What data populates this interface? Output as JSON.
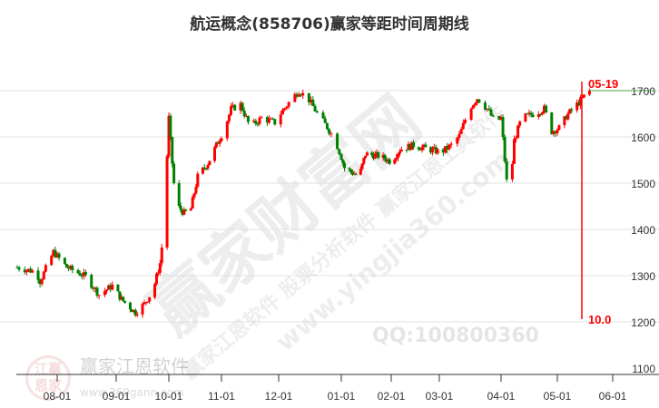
{
  "title": "航运概念(858706)赢家等距时间周期线",
  "watermarks": {
    "main": "赢家财富网",
    "sub": "赢家江恩软件 股票分析软件 赢家江恩工具软件",
    "url": "www.yingjia360.com",
    "qq": "QQ:100800360",
    "logo_text": "赢家江恩软件",
    "logo_url": "www.360gann.com",
    "seal": "江赢恩家"
  },
  "colors": {
    "up": "#ff0000",
    "down": "#008000",
    "marker": "#ff0000",
    "grid": "#e0e0e0"
  },
  "chart_data": {
    "type": "candlestick",
    "title": "航运概念(858706)赢家等距时间周期线",
    "ylim": [
      1100,
      1700
    ],
    "y_ticks": [
      1700,
      1600,
      1500,
      1400,
      1300,
      1200,
      1100
    ],
    "x_ticks": [
      "08-01",
      "09-01",
      "10-01",
      "11-01",
      "12-01",
      "01-01",
      "02-01",
      "03-01",
      "04-01",
      "05-01",
      "06-01"
    ],
    "grid": "horizontal",
    "approx_closes": [
      [
        "07-11",
        1318
      ],
      [
        "07-21",
        1308
      ],
      [
        "07-23",
        1288
      ],
      [
        "07-30",
        1351
      ],
      [
        "08-06",
        1318
      ],
      [
        "08-16",
        1298
      ],
      [
        "08-23",
        1259
      ],
      [
        "08-30",
        1278
      ],
      [
        "09-04",
        1249
      ],
      [
        "09-12",
        1220
      ],
      [
        "09-17",
        1239
      ],
      [
        "09-22",
        1268
      ],
      [
        "09-26",
        1327
      ],
      [
        "09-28",
        1396
      ],
      [
        "10-01",
        1641
      ],
      [
        "10-03",
        1543
      ],
      [
        "10-05",
        1455
      ],
      [
        "10-10",
        1435
      ],
      [
        "10-14",
        1445
      ],
      [
        "10-18",
        1514
      ],
      [
        "10-24",
        1543
      ],
      [
        "10-29",
        1582
      ],
      [
        "11-02",
        1612
      ],
      [
        "11-06",
        1660
      ],
      [
        "11-11",
        1670
      ],
      [
        "11-16",
        1621
      ],
      [
        "11-22",
        1641
      ],
      [
        "11-29",
        1631
      ],
      [
        "12-02",
        1651
      ],
      [
        "12-07",
        1680
      ],
      [
        "12-11",
        1700
      ],
      [
        "12-16",
        1680
      ],
      [
        "12-20",
        1651
      ],
      [
        "12-25",
        1621
      ],
      [
        "12-29",
        1592
      ],
      [
        "01-03",
        1533
      ],
      [
        "01-08",
        1523
      ],
      [
        "01-12",
        1514
      ],
      [
        "01-16",
        1563
      ],
      [
        "01-24",
        1559
      ],
      [
        "02-01",
        1547
      ],
      [
        "02-06",
        1573
      ],
      [
        "02-14",
        1582
      ],
      [
        "02-23",
        1573
      ],
      [
        "03-02",
        1567
      ],
      [
        "03-07",
        1582
      ],
      [
        "03-11",
        1602
      ],
      [
        "03-16",
        1661
      ],
      [
        "03-20",
        1684
      ],
      [
        "03-25",
        1661
      ],
      [
        "03-29",
        1631
      ],
      [
        "04-01",
        1641
      ],
      [
        "04-04",
        1504
      ],
      [
        "04-06",
        1494
      ],
      [
        "04-08",
        1592
      ],
      [
        "04-12",
        1641
      ],
      [
        "04-19",
        1651
      ],
      [
        "04-24",
        1661
      ],
      [
        "04-28",
        1612
      ],
      [
        "05-03",
        1621
      ],
      [
        "05-06",
        1645
      ],
      [
        "05-19",
        1700
      ]
    ],
    "last_close_level": 1700,
    "marker": {
      "date_label": "05-19",
      "value_label": "10.0"
    }
  }
}
